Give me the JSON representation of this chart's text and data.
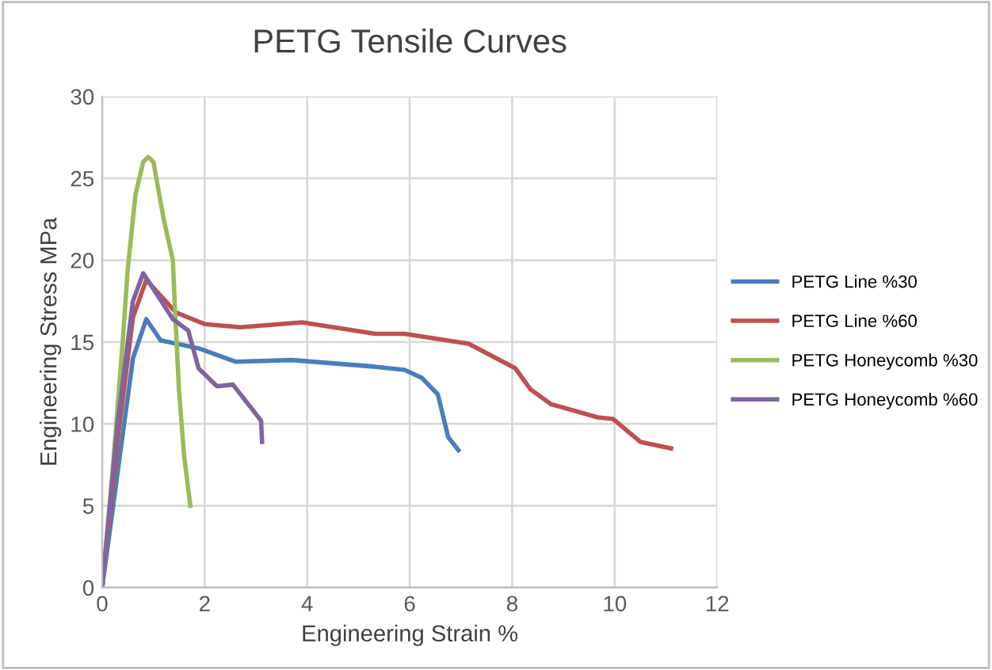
{
  "chart_data": {
    "type": "line",
    "title": "PETG Tensile Curves",
    "xlabel": "Engineering Strain %",
    "ylabel": "Engineering Stress MPa",
    "xlim": [
      0,
      12
    ],
    "xticks": [
      0,
      2,
      4,
      6,
      8,
      10,
      12
    ],
    "ylim": [
      0,
      30
    ],
    "yticks": [
      0,
      5,
      10,
      15,
      20,
      25,
      30
    ],
    "grid": true,
    "legend": "right",
    "marker": "none",
    "line_style": "solid",
    "series": [
      {
        "name": "PETG Line %30",
        "color": "#4a7ebb",
        "x": [
          0,
          0.3,
          0.6,
          0.86,
          1.14,
          1.9,
          2.6,
          3.7,
          5.3,
          5.9,
          6.24,
          6.55,
          6.75,
          6.95
        ],
        "values": [
          0,
          7,
          14,
          16.4,
          15.1,
          14.6,
          13.8,
          13.9,
          13.5,
          13.3,
          12.8,
          11.8,
          9.2,
          8.4
        ]
      },
      {
        "name": "PETG Line %60",
        "color": "#c0504d",
        "x": [
          0,
          0.3,
          0.6,
          0.86,
          1.44,
          2.0,
          2.7,
          3.9,
          5.33,
          5.9,
          7.15,
          8.06,
          8.36,
          8.76,
          9.67,
          9.97,
          10.5,
          11.1
        ],
        "values": [
          0,
          9,
          16.5,
          18.8,
          16.8,
          16.1,
          15.9,
          16.2,
          15.5,
          15.5,
          14.9,
          13.4,
          12.1,
          11.2,
          10.4,
          10.3,
          8.9,
          8.5
        ]
      },
      {
        "name": "PETG Honeycomb %30",
        "color": "#9bbb59",
        "x": [
          0,
          0.2,
          0.4,
          0.5,
          0.65,
          0.8,
          0.9,
          1.0,
          1.2,
          1.38,
          1.42,
          1.5,
          1.6,
          1.72
        ],
        "values": [
          0,
          7,
          15,
          19.5,
          24,
          26,
          26.3,
          26,
          22.5,
          20,
          17,
          12,
          8,
          5
        ]
      },
      {
        "name": "PETG Honeycomb %60",
        "color": "#8064a2",
        "x": [
          0,
          0.3,
          0.6,
          0.8,
          1.38,
          1.68,
          1.88,
          2.24,
          2.55,
          2.9,
          3.1,
          3.12
        ],
        "values": [
          0,
          10,
          17.5,
          19.2,
          16.4,
          15.7,
          13.4,
          12.3,
          12.4,
          11.0,
          10.2,
          8.9
        ]
      }
    ]
  }
}
